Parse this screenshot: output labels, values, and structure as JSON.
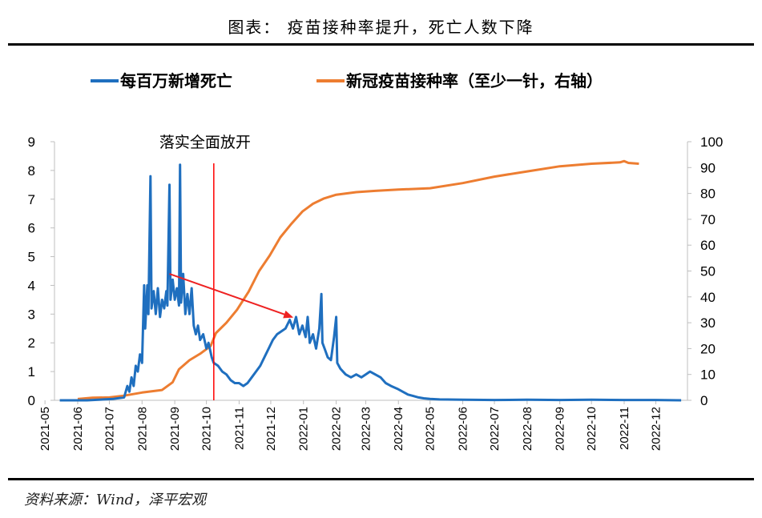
{
  "header": {
    "title": "图表：  疫苗接种率提升，死亡人数下降"
  },
  "footer": {
    "source": "资料来源：Wind，泽平宏观"
  },
  "colors": {
    "deaths": "#1f6fbf",
    "vaccination": "#ed7d31",
    "marker": "#ff0000",
    "arrow": "#ee2222"
  },
  "chart_data": {
    "type": "line",
    "title": "",
    "legend": [
      {
        "name": "每百万新增死亡",
        "axis": "left"
      },
      {
        "name": "新冠疫苗接种率（至少一针，右轴）",
        "axis": "right"
      }
    ],
    "legend_position": "top",
    "x_start": "2021-05-10",
    "x_end": "2022-12-31",
    "x_tick_labels": [
      "2021-05",
      "2021-06",
      "2021-07",
      "2021-08",
      "2021-09",
      "2021-10",
      "2021-11",
      "2021-12",
      "2022-01",
      "2022-02",
      "2022-03",
      "2022-04",
      "2022-05",
      "2022-06",
      "2022-07",
      "2022-08",
      "2022-09",
      "2022-10",
      "2022-11",
      "2022-12"
    ],
    "y_left": {
      "min": 0,
      "max": 9,
      "ticks": [
        "0",
        "1",
        "2",
        "3",
        "4",
        "5",
        "6",
        "7",
        "8",
        "9"
      ]
    },
    "y_right": {
      "min": 0,
      "max": 100,
      "ticks": [
        "0",
        "10",
        "20",
        "30",
        "40",
        "50",
        "60",
        "70",
        "80",
        "90",
        "100"
      ]
    },
    "series": [
      {
        "name": "每百万新增死亡",
        "axis": "left",
        "points": [
          [
            "2021-05-15",
            0.0
          ],
          [
            "2021-06-10",
            0.0
          ],
          [
            "2021-07-05",
            0.05
          ],
          [
            "2021-07-15",
            0.1
          ],
          [
            "2021-07-18",
            0.5
          ],
          [
            "2021-07-20",
            0.3
          ],
          [
            "2021-07-22",
            0.8
          ],
          [
            "2021-07-24",
            0.5
          ],
          [
            "2021-07-26",
            1.2
          ],
          [
            "2021-07-28",
            1.0
          ],
          [
            "2021-07-30",
            1.6
          ],
          [
            "2021-08-01",
            1.3
          ],
          [
            "2021-08-03",
            4.0
          ],
          [
            "2021-08-04",
            2.5
          ],
          [
            "2021-08-06",
            4.0
          ],
          [
            "2021-08-07",
            3.0
          ],
          [
            "2021-08-09",
            7.8
          ],
          [
            "2021-08-10",
            3.2
          ],
          [
            "2021-08-12",
            3.8
          ],
          [
            "2021-08-14",
            3.0
          ],
          [
            "2021-08-16",
            3.9
          ],
          [
            "2021-08-18",
            2.9
          ],
          [
            "2021-08-20",
            3.5
          ],
          [
            "2021-08-22",
            3.2
          ],
          [
            "2021-08-24",
            3.8
          ],
          [
            "2021-08-25",
            3.3
          ],
          [
            "2021-08-27",
            7.5
          ],
          [
            "2021-08-28",
            3.5
          ],
          [
            "2021-08-30",
            4.2
          ],
          [
            "2021-09-01",
            3.5
          ],
          [
            "2021-09-03",
            3.9
          ],
          [
            "2021-09-05",
            3.3
          ],
          [
            "2021-09-06",
            8.2
          ],
          [
            "2021-09-07",
            3.4
          ],
          [
            "2021-09-09",
            4.4
          ],
          [
            "2021-09-11",
            3.0
          ],
          [
            "2021-09-13",
            3.7
          ],
          [
            "2021-09-15",
            3.0
          ],
          [
            "2021-09-17",
            3.9
          ],
          [
            "2021-09-19",
            2.6
          ],
          [
            "2021-09-21",
            2.3
          ],
          [
            "2021-09-23",
            2.6
          ],
          [
            "2021-09-25",
            2.1
          ],
          [
            "2021-09-28",
            2.3
          ],
          [
            "2021-10-01",
            1.8
          ],
          [
            "2021-10-03",
            2.0
          ],
          [
            "2021-10-06",
            1.5
          ],
          [
            "2021-10-08",
            1.3
          ],
          [
            "2021-10-12",
            1.2
          ],
          [
            "2021-10-16",
            1.0
          ],
          [
            "2021-10-20",
            0.9
          ],
          [
            "2021-10-24",
            0.7
          ],
          [
            "2021-10-28",
            0.6
          ],
          [
            "2021-11-01",
            0.6
          ],
          [
            "2021-11-05",
            0.5
          ],
          [
            "2021-11-09",
            0.6
          ],
          [
            "2021-11-13",
            0.8
          ],
          [
            "2021-11-17",
            1.0
          ],
          [
            "2021-11-21",
            1.2
          ],
          [
            "2021-11-25",
            1.5
          ],
          [
            "2021-11-29",
            1.8
          ],
          [
            "2021-12-03",
            2.1
          ],
          [
            "2021-12-07",
            2.3
          ],
          [
            "2021-12-11",
            2.4
          ],
          [
            "2021-12-15",
            2.5
          ],
          [
            "2021-12-19",
            2.8
          ],
          [
            "2021-12-22",
            2.5
          ],
          [
            "2021-12-25",
            2.9
          ],
          [
            "2021-12-28",
            2.3
          ],
          [
            "2021-12-31",
            2.6
          ],
          [
            "2022-01-03",
            2.2
          ],
          [
            "2022-01-05",
            2.9
          ],
          [
            "2022-01-07",
            2.0
          ],
          [
            "2022-01-10",
            2.3
          ],
          [
            "2022-01-13",
            1.8
          ],
          [
            "2022-01-16",
            2.5
          ],
          [
            "2022-01-18",
            3.7
          ],
          [
            "2022-01-19",
            2.0
          ],
          [
            "2022-01-21",
            1.8
          ],
          [
            "2022-01-24",
            1.5
          ],
          [
            "2022-01-27",
            1.4
          ],
          [
            "2022-01-30",
            2.2
          ],
          [
            "2022-02-01",
            2.9
          ],
          [
            "2022-02-02",
            1.3
          ],
          [
            "2022-02-05",
            1.1
          ],
          [
            "2022-02-10",
            0.9
          ],
          [
            "2022-02-15",
            0.8
          ],
          [
            "2022-02-20",
            0.9
          ],
          [
            "2022-02-25",
            0.8
          ],
          [
            "2022-03-01",
            0.9
          ],
          [
            "2022-03-05",
            1.0
          ],
          [
            "2022-03-10",
            0.9
          ],
          [
            "2022-03-15",
            0.8
          ],
          [
            "2022-03-20",
            0.6
          ],
          [
            "2022-03-25",
            0.5
          ],
          [
            "2022-03-31",
            0.4
          ],
          [
            "2022-04-05",
            0.3
          ],
          [
            "2022-04-10",
            0.2
          ],
          [
            "2022-04-15",
            0.15
          ],
          [
            "2022-04-20",
            0.1
          ],
          [
            "2022-04-25",
            0.07
          ],
          [
            "2022-05-01",
            0.05
          ],
          [
            "2022-05-10",
            0.03
          ],
          [
            "2022-06-01",
            0.02
          ],
          [
            "2022-07-01",
            0.01
          ],
          [
            "2022-08-01",
            0.02
          ],
          [
            "2022-09-01",
            0.01
          ],
          [
            "2022-10-01",
            0.02
          ],
          [
            "2022-11-01",
            0.01
          ],
          [
            "2022-12-01",
            0.01
          ],
          [
            "2022-12-25",
            0.0
          ]
        ]
      },
      {
        "name": "新冠疫苗接种率（至少一针，右轴）",
        "axis": "right",
        "points": [
          [
            "2021-06-01",
            0.5
          ],
          [
            "2021-06-15",
            1.0
          ],
          [
            "2021-07-01",
            1.1
          ],
          [
            "2021-07-15",
            1.8
          ],
          [
            "2021-08-01",
            3.0
          ],
          [
            "2021-08-20",
            4.0
          ],
          [
            "2021-08-30",
            7.0
          ],
          [
            "2021-09-05",
            12.0
          ],
          [
            "2021-09-15",
            15.5
          ],
          [
            "2021-09-25",
            18.0
          ],
          [
            "2021-10-05",
            21.0
          ],
          [
            "2021-10-10",
            26.0
          ],
          [
            "2021-10-20",
            30.0
          ],
          [
            "2021-10-30",
            35.0
          ],
          [
            "2021-11-10",
            42.0
          ],
          [
            "2021-11-20",
            50.0
          ],
          [
            "2021-11-30",
            56.0
          ],
          [
            "2021-12-10",
            63.0
          ],
          [
            "2021-12-20",
            68.0
          ],
          [
            "2021-12-31",
            73.0
          ],
          [
            "2022-01-10",
            76.0
          ],
          [
            "2022-01-20",
            78.0
          ],
          [
            "2022-02-01",
            79.5
          ],
          [
            "2022-02-20",
            80.5
          ],
          [
            "2022-03-10",
            81.0
          ],
          [
            "2022-04-01",
            81.5
          ],
          [
            "2022-05-01",
            82.0
          ],
          [
            "2022-06-01",
            84.0
          ],
          [
            "2022-07-01",
            86.5
          ],
          [
            "2022-08-01",
            88.5
          ],
          [
            "2022-09-01",
            90.5
          ],
          [
            "2022-10-01",
            91.5
          ],
          [
            "2022-10-28",
            92.0
          ],
          [
            "2022-11-01",
            92.5
          ],
          [
            "2022-11-05",
            91.8
          ],
          [
            "2022-11-15",
            91.5
          ]
        ]
      }
    ],
    "annotations": [
      {
        "type": "vline",
        "date": "2021-10-08",
        "label": "落实全面放开"
      },
      {
        "type": "arrow",
        "from": [
          "2021-08-27",
          4.4
        ],
        "to": [
          "2021-12-21",
          2.9
        ]
      }
    ]
  }
}
